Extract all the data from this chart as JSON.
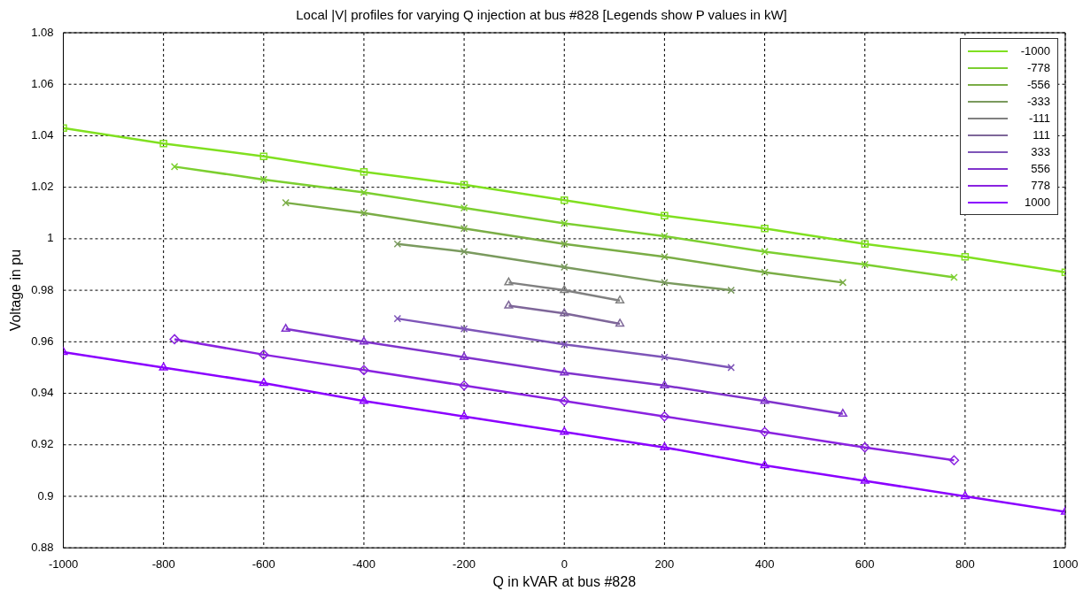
{
  "chart_data": {
    "type": "line",
    "title": "Local |V| profiles for varying Q injection at bus #828  [Legends show P values in kW]",
    "xlabel": "Q in kVAR at bus #828",
    "ylabel": "Voltage in pu",
    "xlim": [
      -1000,
      1000
    ],
    "xticks": [
      -1000,
      -800,
      -600,
      -400,
      -200,
      0,
      200,
      400,
      600,
      800,
      1000
    ],
    "ylim": [
      0.88,
      1.08
    ],
    "yticks": [
      0.88,
      0.9,
      0.92,
      0.94,
      0.96,
      0.98,
      {
        "value": 1,
        "label": "1"
      },
      1.02,
      1.04,
      1.06,
      1.08
    ],
    "grid": true,
    "legend": "top right",
    "line_style": "solid",
    "series": [
      {
        "name": "-1000",
        "color": "#80e020",
        "marker": "square",
        "x": [
          -1000,
          -800,
          -600,
          -400,
          -200,
          0,
          200,
          400,
          600,
          800,
          1000
        ],
        "values": [
          1.043,
          1.037,
          1.032,
          1.026,
          1.021,
          1.015,
          1.009,
          1.004,
          0.998,
          0.993,
          0.987
        ]
      },
      {
        "name": "-778",
        "color": "#7ccf30",
        "marker": "cross",
        "x": [
          -778,
          -600,
          -400,
          -200,
          0,
          200,
          400,
          600,
          778
        ],
        "values": [
          1.028,
          1.023,
          1.018,
          1.012,
          1.006,
          1.001,
          0.995,
          0.99,
          0.985
        ]
      },
      {
        "name": "-556",
        "color": "#7aad46",
        "marker": "cross",
        "x": [
          -556,
          -400,
          -200,
          0,
          200,
          400,
          556
        ],
        "values": [
          1.014,
          1.01,
          1.004,
          0.998,
          0.993,
          0.987,
          0.983
        ]
      },
      {
        "name": "-333",
        "color": "#7a9a5e",
        "marker": "cross",
        "x": [
          -333,
          -200,
          0,
          200,
          333
        ],
        "values": [
          0.998,
          0.995,
          0.989,
          0.983,
          0.98
        ]
      },
      {
        "name": "-111",
        "color": "#808080",
        "marker": "triangle",
        "x": [
          -111,
          0,
          111
        ],
        "values": [
          0.983,
          0.98,
          0.976
        ]
      },
      {
        "name": "111",
        "color": "#7e6699",
        "marker": "triangle",
        "x": [
          -111,
          0,
          111
        ],
        "values": [
          0.974,
          0.971,
          0.967
        ]
      },
      {
        "name": "333",
        "color": "#7e55b8",
        "marker": "cross",
        "x": [
          -333,
          -200,
          0,
          200,
          333
        ],
        "values": [
          0.969,
          0.965,
          0.959,
          0.954,
          0.95
        ]
      },
      {
        "name": "556",
        "color": "#8033cc",
        "marker": "triangle",
        "x": [
          -556,
          -400,
          -200,
          0,
          200,
          400,
          556
        ],
        "values": [
          0.965,
          0.96,
          0.954,
          0.948,
          0.943,
          0.937,
          0.932
        ]
      },
      {
        "name": "778",
        "color": "#8a22e0",
        "marker": "diamond",
        "x": [
          -778,
          -600,
          -400,
          -200,
          0,
          200,
          400,
          600,
          778
        ],
        "values": [
          0.961,
          0.955,
          0.949,
          0.943,
          0.937,
          0.931,
          0.925,
          0.919,
          0.914
        ]
      },
      {
        "name": "1000",
        "color": "#8b00ff",
        "marker": "triangle",
        "x": [
          -1000,
          -800,
          -600,
          -400,
          -200,
          0,
          200,
          400,
          600,
          800,
          1000
        ],
        "values": [
          0.956,
          0.95,
          0.944,
          0.937,
          0.931,
          0.925,
          0.919,
          0.912,
          0.906,
          0.9,
          0.894
        ]
      }
    ]
  }
}
